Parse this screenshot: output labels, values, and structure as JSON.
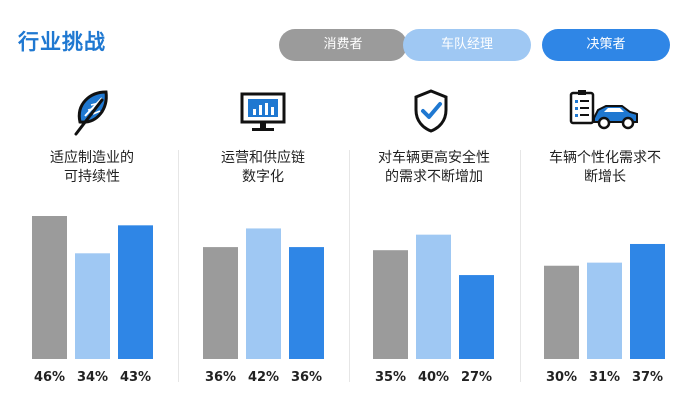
{
  "header": {
    "title": "行业挑战"
  },
  "legend": [
    {
      "label": "消费者",
      "color": "#9b9b9b"
    },
    {
      "label": "车队经理",
      "color": "#9fc8f3"
    },
    {
      "label": "决策者",
      "color": "#2f86e6"
    }
  ],
  "groups": [
    {
      "title_line1": "适应制造业的",
      "title_line2": "可持续性",
      "icon": "leaf-icon"
    },
    {
      "title_line1": "运营和供应链",
      "title_line2": "数字化",
      "icon": "monitor-chart-icon"
    },
    {
      "title_line1": "对车辆更高安全性",
      "title_line2": "的需求不断增加",
      "icon": "shield-check-icon"
    },
    {
      "title_line1": "车辆个性化需求不",
      "title_line2": "断增长",
      "icon": "checklist-car-icon"
    }
  ],
  "chart_data": {
    "type": "bar",
    "categories": [
      "适应制造业的可持续性",
      "运营和供应链数字化",
      "对车辆更高安全性的需求不断增加",
      "车辆个性化需求不断增长"
    ],
    "series": [
      {
        "name": "消费者",
        "values": [
          46,
          36,
          35,
          30
        ],
        "labels": [
          "46%",
          "36%",
          "35%",
          "30%"
        ]
      },
      {
        "name": "车队经理",
        "values": [
          34,
          42,
          40,
          31
        ],
        "labels": [
          "34%",
          "42%",
          "40%",
          "31%"
        ]
      },
      {
        "name": "决策者",
        "values": [
          43,
          36,
          27,
          37
        ],
        "labels": [
          "43%",
          "36%",
          "27%",
          "37%"
        ]
      }
    ],
    "unit": "%"
  }
}
